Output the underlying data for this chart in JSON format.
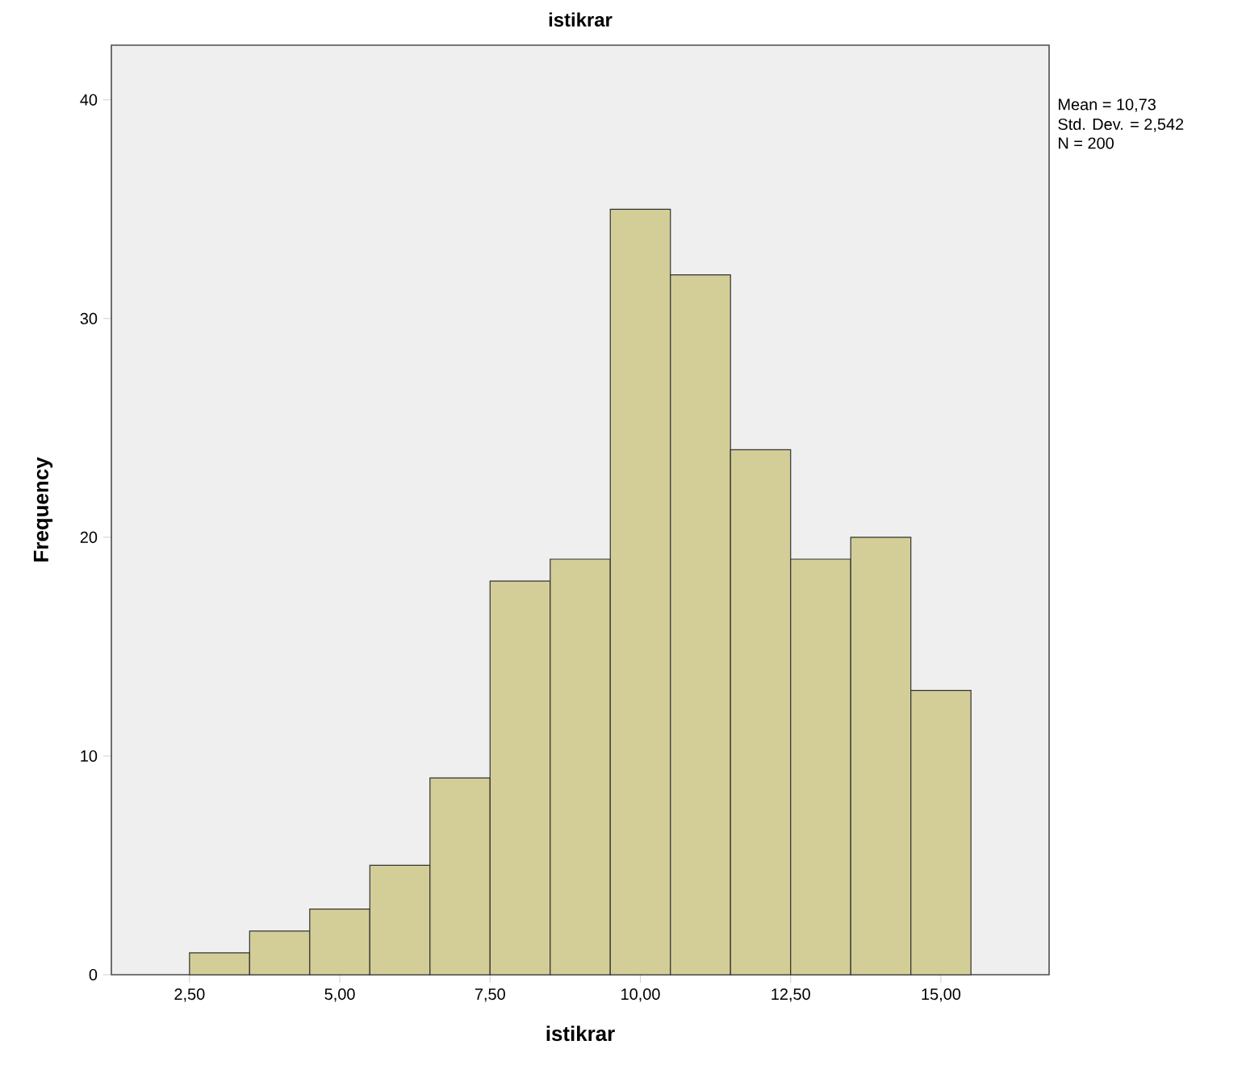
{
  "chart_data": {
    "type": "histogram",
    "title": "istikrar",
    "xlabel": "istikrar",
    "ylabel": "Frequency",
    "bins": [
      2.5,
      3.5,
      4.5,
      5.5,
      6.5,
      7.5,
      8.5,
      9.5,
      10.5,
      11.5,
      12.5,
      13.5,
      14.5,
      15.5
    ],
    "values": [
      1,
      2,
      3,
      5,
      9,
      18,
      19,
      35,
      32,
      24,
      19,
      20,
      13
    ],
    "color": "#d3ce97",
    "xlim": [
      1.2,
      16.8
    ],
    "ylim": [
      0,
      42.5
    ],
    "xticks": [
      {
        "value": 2.5,
        "label": "2,50"
      },
      {
        "value": 5,
        "label": "5,00"
      },
      {
        "value": 7.5,
        "label": "7,50"
      },
      {
        "value": 10,
        "label": "10,00"
      },
      {
        "value": 12.5,
        "label": "12,50"
      },
      {
        "value": 15,
        "label": "15,00"
      }
    ],
    "yticks": [
      0,
      10,
      20,
      30,
      40
    ],
    "annotations": [
      "Mean = 10,73",
      "Std. Dev. = 2,542",
      "N = 200"
    ]
  }
}
